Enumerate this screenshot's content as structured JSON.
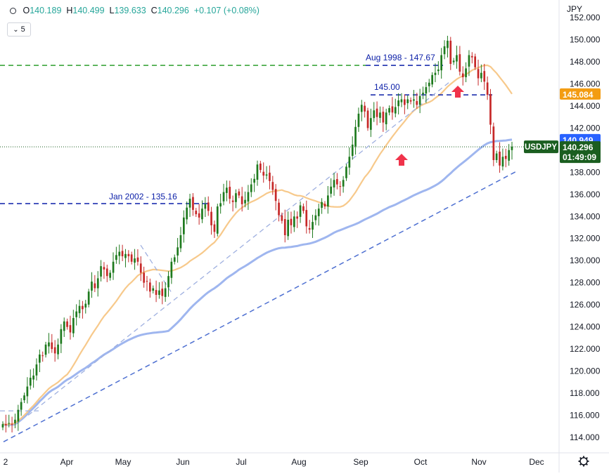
{
  "ohlc": {
    "open_label": "O",
    "open": "140.189",
    "high_label": "H",
    "high": "140.499",
    "low_label": "L",
    "low": "139.633",
    "close_label": "C",
    "close": "140.296",
    "change": "+0.107 (+0.08%)"
  },
  "interval_button": {
    "label": "5"
  },
  "currency": "JPY",
  "symbol_tag": "USDJPY",
  "price_tags": {
    "ma_upper": "145.084",
    "ma_lower": "140.949",
    "last_price": "140.296",
    "countdown": "01:49:09"
  },
  "annotations": {
    "aug1998": "Aug 1998 - 147.67",
    "level145": "145.00",
    "jan2002": "Jan 2002 - 135.16"
  },
  "colors": {
    "up": "#26a69a",
    "down": "#ef5350",
    "candle_up": "#1e7a1e",
    "candle_down": "#c62828",
    "ma_fast": "#f7c98b",
    "ma_slow": "#9fb6ef",
    "dashed_blue": "#0b1fa8",
    "trend_blue": "#4d6fd1",
    "green_dash": "#2f9e2f",
    "arrow": "#f0334b",
    "tag_orange": "#f39c12",
    "tag_blue": "#2962ff",
    "tag_green": "#1b5e20"
  },
  "chart_data": {
    "type": "candlestick",
    "title": "USDJPY",
    "x_tick_labels": [
      "2",
      "Apr",
      "May",
      "Jun",
      "Jul",
      "Aug",
      "Sep",
      "Oct",
      "Nov",
      "Dec"
    ],
    "y_tick_labels": [
      "114.000",
      "116.000",
      "118.000",
      "120.000",
      "122.000",
      "124.000",
      "126.000",
      "128.000",
      "130.000",
      "132.000",
      "134.000",
      "136.000",
      "138.000",
      "140.000",
      "142.000",
      "144.000",
      "146.000",
      "148.000",
      "150.000",
      "152.000"
    ],
    "ylim": [
      113,
      152.2
    ],
    "closes": [
      115.2,
      115.1,
      115.3,
      115.2,
      115.6,
      116.5,
      117.2,
      117.8,
      118.6,
      119.4,
      119.6,
      120.6,
      121.5,
      121.4,
      122.4,
      122.6,
      122.0,
      121.6,
      122.4,
      123.8,
      124.5,
      124.0,
      123.5,
      124.8,
      125.4,
      125.9,
      125.6,
      126.1,
      127.2,
      128.1,
      127.5,
      128.4,
      129.5,
      129.2,
      128.6,
      128.9,
      129.9,
      130.5,
      130.8,
      130.4,
      130.6,
      130.4,
      129.9,
      130.2,
      129.9,
      128.9,
      128.0,
      128.1,
      127.2,
      127.5,
      126.9,
      127.3,
      126.8,
      127.5,
      128.6,
      129.9,
      130.3,
      131.2,
      132.3,
      133.9,
      134.8,
      135.6,
      134.6,
      134.2,
      133.9,
      134.7,
      135.1,
      134.5,
      133.2,
      132.6,
      134.9,
      135.2,
      136.2,
      136.6,
      135.6,
      135.3,
      136.1,
      135.9,
      135.1,
      135.5,
      136.2,
      136.9,
      137.4,
      138.7,
      138.2,
      137.7,
      137.8,
      137.2,
      136.4,
      135.4,
      134.1,
      133.6,
      132.3,
      133.7,
      133.2,
      134.0,
      133.8,
      135.0,
      134.5,
      133.1,
      132.8,
      133.5,
      134.1,
      134.7,
      135.3,
      134.9,
      135.9,
      136.7,
      137.3,
      136.9,
      136.7,
      137.3,
      138.5,
      139.4,
      140.5,
      142.1,
      143.3,
      144.1,
      143.5,
      142.0,
      142.9,
      143.6,
      143.0,
      143.4,
      142.5,
      143.4,
      143.8,
      143.4,
      143.9,
      144.5,
      144.6,
      144.1,
      144.6,
      144.4,
      144.6,
      144.1,
      144.9,
      145.2,
      145.7,
      146.1,
      146.8,
      147.0,
      147.3,
      148.6,
      149.4,
      149.9,
      147.8,
      148.1,
      148.6,
      147.1,
      146.6,
      147.4,
      148.6,
      148.4,
      147.5,
      146.5,
      147.0,
      146.2,
      145.0,
      142.3,
      139.1,
      139.7,
      138.6,
      139.4,
      139.2,
      140.0,
      140.3
    ],
    "ma_fast_label": "145.084",
    "ma_slow_label": "140.949",
    "last_price": 140.296
  }
}
